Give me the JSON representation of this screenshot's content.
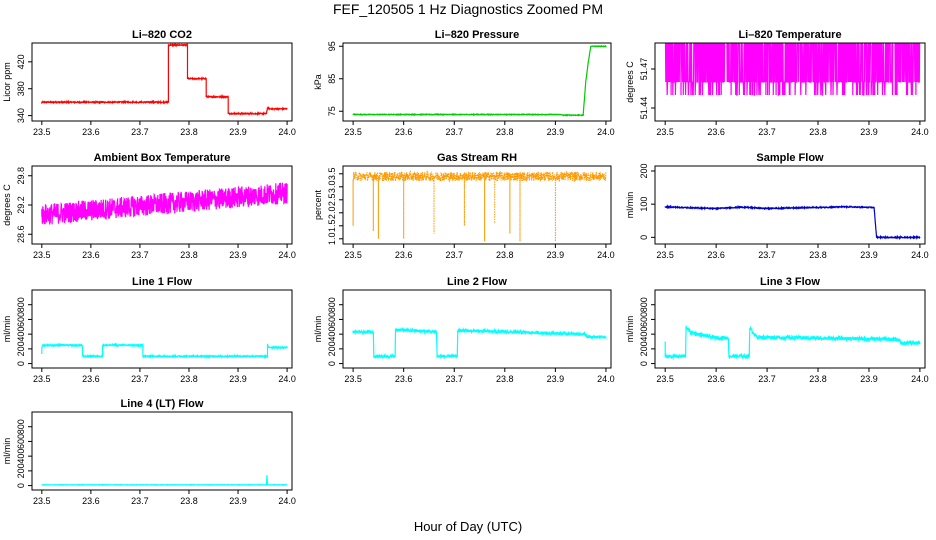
{
  "figure": {
    "title": "FEF_120505  1 Hz Diagnostics Zoomed PM",
    "xlabel": "Hour of Day (UTC)"
  },
  "chart_data": [
    {
      "type": "line",
      "title": "Li–820 CO2",
      "ylabel": "Licor ppm",
      "color": "#ff0000",
      "xlim": [
        23.48,
        24.01
      ],
      "ylim": [
        332,
        448
      ],
      "xticks": [
        23.5,
        23.6,
        23.7,
        23.8,
        23.9,
        24.0
      ],
      "xtick_labels": [
        "23.5",
        "23.6",
        "23.7",
        "23.8",
        "23.9",
        "24.0"
      ],
      "yticks": [
        340,
        380,
        420
      ],
      "ytick_labels": [
        "340",
        "380",
        "420"
      ],
      "series": [
        {
          "x": [
            23.5,
            23.758,
            23.758,
            23.797,
            23.797,
            23.835,
            23.835,
            23.88,
            23.88,
            23.958,
            23.96,
            23.965,
            24.0
          ],
          "y": [
            360,
            360,
            445,
            445,
            395,
            395,
            368,
            368,
            343,
            343,
            352,
            350,
            350
          ],
          "noise": 0.8
        }
      ]
    },
    {
      "type": "line",
      "title": "Li–820 Pressure",
      "ylabel": "kPa",
      "color": "#00cc00",
      "xlim": [
        23.48,
        24.01
      ],
      "ylim": [
        72,
        96
      ],
      "xticks": [
        23.5,
        23.6,
        23.7,
        23.8,
        23.9,
        24.0
      ],
      "xtick_labels": [
        "23.5",
        "23.6",
        "23.7",
        "23.8",
        "23.9",
        "24.0"
      ],
      "yticks": [
        75,
        85,
        95
      ],
      "ytick_labels": [
        "75",
        "85",
        "95"
      ],
      "series": [
        {
          "x": [
            23.5,
            23.91,
            23.915,
            23.955,
            23.96,
            23.965,
            23.97,
            24.0
          ],
          "y": [
            74,
            74,
            73.8,
            73.8,
            84,
            90,
            95,
            95
          ],
          "noise": 0.1
        }
      ]
    },
    {
      "type": "line",
      "title": "Li–820 Temperature",
      "ylabel": "degrees C",
      "color": "#ff00ff",
      "xlim": [
        23.48,
        24.01
      ],
      "ylim": [
        51.43,
        51.49
      ],
      "xticks": [
        23.5,
        23.6,
        23.7,
        23.8,
        23.9,
        24.0
      ],
      "xtick_labels": [
        "23.5",
        "23.6",
        "23.7",
        "23.8",
        "23.9",
        "24.0"
      ],
      "yticks": [
        51.44,
        51.47
      ],
      "ytick_labels": [
        "51.44",
        "51.47"
      ],
      "series": [
        {
          "levels": [
            51.45,
            51.46,
            51.49
          ],
          "mode": "binary",
          "noise": 0
        }
      ]
    },
    {
      "type": "line",
      "title": "Ambient Box Temperature",
      "ylabel": "degrees C",
      "color": "#ff00ff",
      "xlim": [
        23.48,
        24.01
      ],
      "ylim": [
        28.4,
        30.0
      ],
      "xticks": [
        23.5,
        23.6,
        23.7,
        23.8,
        23.9,
        24.0
      ],
      "xtick_labels": [
        "23.5",
        "23.6",
        "23.7",
        "23.8",
        "23.9",
        "24.0"
      ],
      "yticks": [
        28.6,
        29.2,
        29.8
      ],
      "ytick_labels": [
        "28.6",
        "29.2",
        "29.8"
      ],
      "series": [
        {
          "x": [
            23.5,
            24.0
          ],
          "y": [
            29.0,
            29.45
          ],
          "noise": 0.22
        }
      ]
    },
    {
      "type": "line",
      "title": "Gas Stream RH",
      "ylabel": "percent",
      "color": "#ff9900",
      "xlim": [
        23.48,
        24.01
      ],
      "ylim": [
        0.8,
        3.8
      ],
      "xticks": [
        23.5,
        23.6,
        23.7,
        23.8,
        23.9,
        24.0
      ],
      "xtick_labels": [
        "23.5",
        "23.6",
        "23.7",
        "23.8",
        "23.9",
        "24.0"
      ],
      "yticks": [
        1.0,
        1.5,
        2.0,
        2.5,
        3.0,
        3.5
      ],
      "ytick_labels": [
        "1.0",
        "1.5",
        "2.0",
        "2.5",
        "3.0",
        "3.5"
      ],
      "series": [
        {
          "x": [
            23.5,
            24.0
          ],
          "y": [
            3.4,
            3.4
          ],
          "noise": 0.18,
          "dips": [
            [
              23.5,
              1.5
            ],
            [
              23.54,
              1.3
            ],
            [
              23.55,
              1.0
            ],
            [
              23.6,
              1.0
            ],
            [
              23.66,
              1.2
            ],
            [
              23.72,
              1.5
            ],
            [
              23.76,
              0.9
            ],
            [
              23.78,
              1.6
            ],
            [
              23.81,
              1.2
            ],
            [
              23.83,
              0.9
            ],
            [
              23.9,
              0.9
            ]
          ]
        }
      ]
    },
    {
      "type": "line",
      "title": "Sample Flow",
      "ylabel": "ml/min",
      "color": "#0000cc",
      "xlim": [
        23.48,
        24.01
      ],
      "ylim": [
        -20,
        215
      ],
      "xticks": [
        23.5,
        23.6,
        23.7,
        23.8,
        23.9,
        24.0
      ],
      "xtick_labels": [
        "23.5",
        "23.6",
        "23.7",
        "23.8",
        "23.9",
        "24.0"
      ],
      "yticks": [
        0,
        100,
        200
      ],
      "ytick_labels": [
        "0",
        "100",
        "200"
      ],
      "series": [
        {
          "x": [
            23.5,
            23.55,
            23.6,
            23.65,
            23.7,
            23.75,
            23.8,
            23.85,
            23.91,
            23.915,
            24.0
          ],
          "y": [
            92,
            89,
            87,
            91,
            87,
            89,
            90,
            92,
            90,
            0,
            0
          ],
          "noise": 1.5
        }
      ]
    },
    {
      "type": "line",
      "title": "Line 1 Flow",
      "ylabel": "ml/min",
      "color": "#00ffff",
      "xlim": [
        23.48,
        24.01
      ],
      "ylim": [
        -60,
        1000
      ],
      "xticks": [
        23.5,
        23.6,
        23.7,
        23.8,
        23.9,
        24.0
      ],
      "xtick_labels": [
        "23.5",
        "23.6",
        "23.7",
        "23.8",
        "23.9",
        "24.0"
      ],
      "yticks": [
        0,
        200,
        400,
        600,
        800
      ],
      "ytick_labels": [
        "0",
        "200",
        "400",
        "600",
        "800"
      ],
      "series": [
        {
          "x": [
            23.5,
            23.5,
            23.502,
            23.583,
            23.583,
            23.624,
            23.624,
            23.706,
            23.706,
            23.96,
            23.96,
            23.962,
            24.0
          ],
          "y": [
            130,
            220,
            250,
            250,
            100,
            100,
            250,
            250,
            100,
            100,
            260,
            220,
            220
          ],
          "noise": 8
        }
      ]
    },
    {
      "type": "line",
      "title": "Line 2 Flow",
      "ylabel": "ml/min",
      "color": "#00ffff",
      "xlim": [
        23.48,
        24.01
      ],
      "ylim": [
        -60,
        1000
      ],
      "xticks": [
        23.5,
        23.6,
        23.7,
        23.8,
        23.9,
        24.0
      ],
      "xtick_labels": [
        "23.5",
        "23.6",
        "23.7",
        "23.8",
        "23.9",
        "24.0"
      ],
      "yticks": [
        0,
        200,
        400,
        600,
        800
      ],
      "ytick_labels": [
        "0",
        "200",
        "400",
        "600",
        "800"
      ],
      "series": [
        {
          "x": [
            23.5,
            23.54,
            23.541,
            23.583,
            23.584,
            23.665,
            23.666,
            23.706,
            23.707,
            23.96,
            23.962,
            24.0
          ],
          "y": [
            430,
            430,
            100,
            100,
            460,
            430,
            100,
            100,
            450,
            400,
            360,
            360
          ],
          "noise": 20
        }
      ]
    },
    {
      "type": "line",
      "title": "Line 3 Flow",
      "ylabel": "ml/min",
      "color": "#00ffff",
      "xlim": [
        23.48,
        24.01
      ],
      "ylim": [
        -60,
        1000
      ],
      "xticks": [
        23.5,
        23.6,
        23.7,
        23.8,
        23.9,
        24.0
      ],
      "xtick_labels": [
        "23.5",
        "23.6",
        "23.7",
        "23.8",
        "23.9",
        "24.0"
      ],
      "yticks": [
        0,
        200,
        400,
        600,
        800
      ],
      "ytick_labels": [
        "0",
        "200",
        "400",
        "600",
        "800"
      ],
      "series": [
        {
          "x": [
            23.5,
            23.5,
            23.502,
            23.54,
            23.541,
            23.55,
            23.6,
            23.624,
            23.625,
            23.665,
            23.666,
            23.68,
            23.95,
            23.96,
            23.962,
            24.0
          ],
          "y": [
            300,
            100,
            100,
            100,
            500,
            420,
            350,
            350,
            100,
            100,
            480,
            360,
            330,
            320,
            280,
            280
          ],
          "noise": 25
        }
      ]
    },
    {
      "type": "line",
      "title": "Line 4 (LT) Flow",
      "ylabel": "ml/min",
      "color": "#00ffff",
      "xlim": [
        23.48,
        24.01
      ],
      "ylim": [
        -60,
        1000
      ],
      "xticks": [
        23.5,
        23.6,
        23.7,
        23.8,
        23.9,
        24.0
      ],
      "xtick_labels": [
        "23.5",
        "23.6",
        "23.7",
        "23.8",
        "23.9",
        "24.0"
      ],
      "yticks": [
        0,
        200,
        400,
        600,
        800
      ],
      "ytick_labels": [
        "0",
        "200",
        "400",
        "600",
        "800"
      ],
      "series": [
        {
          "x": [
            23.5,
            23.958,
            23.959,
            23.96,
            23.961,
            24.0
          ],
          "y": [
            10,
            10,
            140,
            10,
            10,
            10
          ],
          "noise": 2
        }
      ]
    }
  ]
}
